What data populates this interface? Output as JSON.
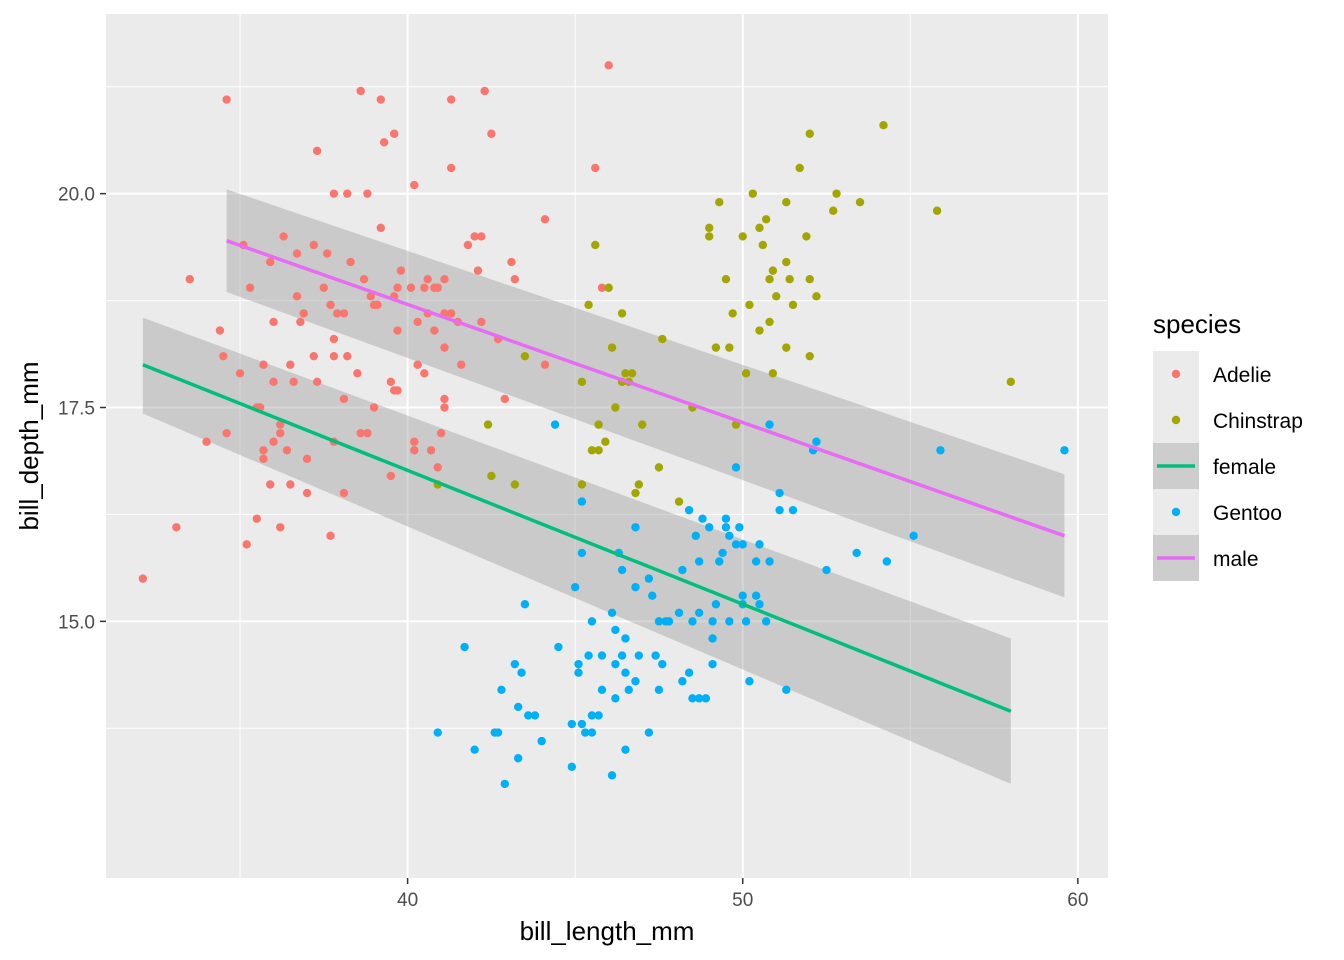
{
  "chart_data": {
    "type": "scatter",
    "xlabel": "bill_length_mm",
    "ylabel": "bill_depth_mm",
    "xlim": [
      31.0,
      60.9
    ],
    "ylim": [
      12.0,
      22.1
    ],
    "x_ticks": [
      40,
      50,
      60
    ],
    "y_ticks": [
      15.0,
      17.5,
      20.0
    ],
    "x_tick_labels": [
      "40",
      "50",
      "60"
    ],
    "y_tick_labels": [
      "15.0",
      "17.5",
      "20.0"
    ],
    "grid": true,
    "legend": {
      "title": "species",
      "position": "right",
      "entries": [
        {
          "label": "Adelie",
          "kind": "point",
          "color": "#F8766D"
        },
        {
          "label": "Chinstrap",
          "kind": "point",
          "color": "#A3A500"
        },
        {
          "label": "female",
          "kind": "line",
          "color": "#00BF7D"
        },
        {
          "label": "Gentoo",
          "kind": "point",
          "color": "#00B0F6"
        },
        {
          "label": "male",
          "kind": "line",
          "color": "#E76BF3"
        }
      ]
    },
    "series": [
      {
        "name": "Adelie",
        "kind": "scatter",
        "color": "#F8766D",
        "points": [
          [
            32.1,
            15.5
          ],
          [
            33.1,
            16.1
          ],
          [
            33.5,
            19.0
          ],
          [
            34.0,
            17.1
          ],
          [
            34.4,
            18.4
          ],
          [
            34.5,
            18.1
          ],
          [
            34.6,
            21.1
          ],
          [
            34.6,
            17.2
          ],
          [
            35.0,
            17.9
          ],
          [
            35.1,
            19.4
          ],
          [
            35.2,
            15.9
          ],
          [
            35.3,
            18.9
          ],
          [
            35.5,
            16.2
          ],
          [
            35.5,
            17.5
          ],
          [
            35.6,
            17.5
          ],
          [
            35.7,
            17.0
          ],
          [
            35.7,
            16.9
          ],
          [
            35.7,
            18.0
          ],
          [
            35.9,
            16.6
          ],
          [
            35.9,
            19.2
          ],
          [
            36.0,
            18.5
          ],
          [
            36.0,
            17.8
          ],
          [
            36.0,
            17.1
          ],
          [
            36.2,
            16.1
          ],
          [
            36.2,
            17.3
          ],
          [
            36.2,
            17.2
          ],
          [
            36.3,
            19.5
          ],
          [
            36.4,
            17.0
          ],
          [
            36.5,
            16.6
          ],
          [
            36.5,
            18.0
          ],
          [
            36.6,
            17.8
          ],
          [
            36.7,
            18.8
          ],
          [
            36.7,
            19.3
          ],
          [
            36.8,
            18.5
          ],
          [
            36.9,
            18.6
          ],
          [
            37.0,
            16.9
          ],
          [
            37.0,
            16.5
          ],
          [
            37.2,
            18.1
          ],
          [
            37.2,
            19.4
          ],
          [
            37.3,
            20.5
          ],
          [
            37.3,
            17.8
          ],
          [
            37.5,
            18.9
          ],
          [
            37.6,
            19.3
          ],
          [
            37.7,
            18.7
          ],
          [
            37.7,
            16.0
          ],
          [
            37.8,
            18.3
          ],
          [
            37.8,
            18.1
          ],
          [
            37.8,
            17.1
          ],
          [
            37.8,
            20.0
          ],
          [
            37.9,
            18.6
          ],
          [
            38.1,
            18.6
          ],
          [
            38.1,
            17.6
          ],
          [
            38.1,
            16.5
          ],
          [
            38.2,
            18.1
          ],
          [
            38.2,
            20.0
          ],
          [
            38.3,
            19.2
          ],
          [
            38.5,
            17.9
          ],
          [
            38.6,
            21.2
          ],
          [
            38.6,
            17.2
          ],
          [
            38.7,
            19.0
          ],
          [
            38.8,
            17.2
          ],
          [
            38.8,
            20.0
          ],
          [
            38.9,
            18.8
          ],
          [
            39.0,
            18.7
          ],
          [
            39.0,
            17.5
          ],
          [
            39.1,
            18.7
          ],
          [
            39.2,
            19.6
          ],
          [
            39.2,
            21.1
          ],
          [
            39.3,
            20.6
          ],
          [
            39.5,
            16.7
          ],
          [
            39.5,
            17.8
          ],
          [
            39.6,
            17.7
          ],
          [
            39.6,
            20.7
          ],
          [
            39.6,
            18.8
          ],
          [
            39.7,
            18.4
          ],
          [
            39.7,
            18.9
          ],
          [
            39.7,
            17.7
          ],
          [
            39.8,
            19.1
          ],
          [
            40.1,
            18.9
          ],
          [
            40.2,
            20.1
          ],
          [
            40.2,
            17.1
          ],
          [
            40.2,
            17.0
          ],
          [
            40.3,
            18.0
          ],
          [
            40.3,
            18.5
          ],
          [
            40.5,
            17.9
          ],
          [
            40.5,
            18.9
          ],
          [
            40.6,
            19.0
          ],
          [
            40.6,
            18.6
          ],
          [
            40.7,
            17.0
          ],
          [
            40.8,
            18.4
          ],
          [
            40.8,
            18.9
          ],
          [
            40.9,
            18.9
          ],
          [
            40.9,
            16.8
          ],
          [
            41.0,
            17.2
          ],
          [
            41.1,
            18.6
          ],
          [
            41.1,
            17.5
          ],
          [
            41.1,
            19.0
          ],
          [
            41.1,
            18.2
          ],
          [
            41.1,
            17.6
          ],
          [
            41.3,
            18.6
          ],
          [
            41.3,
            21.1
          ],
          [
            41.3,
            20.3
          ],
          [
            41.5,
            18.5
          ],
          [
            41.6,
            18.0
          ],
          [
            41.8,
            19.4
          ],
          [
            42.0,
            19.5
          ],
          [
            42.1,
            19.1
          ],
          [
            42.2,
            18.5
          ],
          [
            42.2,
            19.5
          ],
          [
            42.3,
            21.2
          ],
          [
            42.5,
            20.7
          ],
          [
            42.7,
            18.3
          ],
          [
            42.9,
            17.6
          ],
          [
            43.1,
            19.2
          ],
          [
            43.2,
            19.0
          ],
          [
            44.1,
            18.0
          ],
          [
            44.1,
            19.7
          ],
          [
            45.6,
            20.3
          ],
          [
            45.8,
            18.9
          ],
          [
            46.0,
            21.5
          ]
        ]
      },
      {
        "name": "Chinstrap",
        "kind": "scatter",
        "color": "#A3A500",
        "points": [
          [
            40.9,
            16.6
          ],
          [
            42.4,
            17.3
          ],
          [
            42.5,
            16.7
          ],
          [
            43.2,
            16.6
          ],
          [
            43.5,
            18.1
          ],
          [
            45.2,
            17.8
          ],
          [
            45.2,
            16.6
          ],
          [
            45.4,
            18.7
          ],
          [
            45.5,
            17.0
          ],
          [
            45.6,
            19.4
          ],
          [
            45.7,
            17.3
          ],
          [
            45.7,
            17.0
          ],
          [
            45.9,
            17.1
          ],
          [
            46.0,
            18.9
          ],
          [
            46.1,
            18.2
          ],
          [
            46.2,
            17.5
          ],
          [
            46.4,
            18.6
          ],
          [
            46.4,
            17.8
          ],
          [
            46.5,
            17.9
          ],
          [
            46.6,
            17.8
          ],
          [
            46.7,
            17.9
          ],
          [
            46.8,
            16.5
          ],
          [
            46.9,
            16.6
          ],
          [
            47.0,
            17.3
          ],
          [
            47.5,
            16.8
          ],
          [
            47.6,
            18.3
          ],
          [
            48.1,
            16.4
          ],
          [
            48.5,
            17.5
          ],
          [
            49.0,
            19.5
          ],
          [
            49.0,
            19.6
          ],
          [
            49.2,
            18.2
          ],
          [
            49.3,
            19.9
          ],
          [
            49.5,
            19.0
          ],
          [
            49.6,
            18.2
          ],
          [
            49.7,
            18.6
          ],
          [
            49.8,
            17.3
          ],
          [
            50.0,
            19.5
          ],
          [
            50.1,
            17.9
          ],
          [
            50.2,
            18.7
          ],
          [
            50.3,
            20.0
          ],
          [
            50.5,
            18.4
          ],
          [
            50.5,
            19.6
          ],
          [
            50.6,
            19.4
          ],
          [
            50.7,
            19.7
          ],
          [
            50.8,
            19.0
          ],
          [
            50.8,
            18.5
          ],
          [
            50.9,
            17.9
          ],
          [
            50.9,
            19.1
          ],
          [
            51.0,
            18.8
          ],
          [
            51.3,
            19.2
          ],
          [
            51.3,
            18.2
          ],
          [
            51.3,
            19.9
          ],
          [
            51.4,
            19.0
          ],
          [
            51.5,
            18.7
          ],
          [
            51.7,
            20.3
          ],
          [
            51.9,
            19.5
          ],
          [
            52.0,
            18.1
          ],
          [
            52.0,
            19.0
          ],
          [
            52.0,
            20.7
          ],
          [
            52.2,
            18.8
          ],
          [
            52.7,
            19.8
          ],
          [
            52.8,
            20.0
          ],
          [
            53.5,
            19.9
          ],
          [
            54.2,
            20.8
          ],
          [
            55.8,
            19.8
          ],
          [
            58.0,
            17.8
          ]
        ]
      },
      {
        "name": "Gentoo",
        "kind": "scatter",
        "color": "#00B0F6",
        "points": [
          [
            40.9,
            13.7
          ],
          [
            41.7,
            14.7
          ],
          [
            42.0,
            13.5
          ],
          [
            42.6,
            13.7
          ],
          [
            42.7,
            13.7
          ],
          [
            42.8,
            14.2
          ],
          [
            42.9,
            13.1
          ],
          [
            43.2,
            14.5
          ],
          [
            43.3,
            14.0
          ],
          [
            43.3,
            13.4
          ],
          [
            43.4,
            14.4
          ],
          [
            43.5,
            15.2
          ],
          [
            43.6,
            13.9
          ],
          [
            43.8,
            13.9
          ],
          [
            44.0,
            13.6
          ],
          [
            44.4,
            17.3
          ],
          [
            44.5,
            14.7
          ],
          [
            44.9,
            13.3
          ],
          [
            44.9,
            13.8
          ],
          [
            45.0,
            15.4
          ],
          [
            45.1,
            14.5
          ],
          [
            45.1,
            14.4
          ],
          [
            45.2,
            15.8
          ],
          [
            45.2,
            16.4
          ],
          [
            45.2,
            13.8
          ],
          [
            45.3,
            13.7
          ],
          [
            45.4,
            14.6
          ],
          [
            45.5,
            13.7
          ],
          [
            45.5,
            13.9
          ],
          [
            45.5,
            15.0
          ],
          [
            45.7,
            13.9
          ],
          [
            45.8,
            14.2
          ],
          [
            45.8,
            14.6
          ],
          [
            46.1,
            13.2
          ],
          [
            46.1,
            15.1
          ],
          [
            46.2,
            14.1
          ],
          [
            46.2,
            14.5
          ],
          [
            46.2,
            14.9
          ],
          [
            46.3,
            15.8
          ],
          [
            46.4,
            14.6
          ],
          [
            46.4,
            15.6
          ],
          [
            46.5,
            14.4
          ],
          [
            46.5,
            13.5
          ],
          [
            46.5,
            14.8
          ],
          [
            46.6,
            14.2
          ],
          [
            46.8,
            14.3
          ],
          [
            46.8,
            15.4
          ],
          [
            46.8,
            16.1
          ],
          [
            46.9,
            14.6
          ],
          [
            47.2,
            13.7
          ],
          [
            47.2,
            15.5
          ],
          [
            47.3,
            15.3
          ],
          [
            47.4,
            14.6
          ],
          [
            47.5,
            14.2
          ],
          [
            47.5,
            15.0
          ],
          [
            47.6,
            14.5
          ],
          [
            47.7,
            15.0
          ],
          [
            47.8,
            15.0
          ],
          [
            48.1,
            15.1
          ],
          [
            48.2,
            14.3
          ],
          [
            48.2,
            15.6
          ],
          [
            48.4,
            14.4
          ],
          [
            48.4,
            16.3
          ],
          [
            48.5,
            14.1
          ],
          [
            48.5,
            15.0
          ],
          [
            48.6,
            16.0
          ],
          [
            48.7,
            14.1
          ],
          [
            48.7,
            15.7
          ],
          [
            48.7,
            15.1
          ],
          [
            48.8,
            16.2
          ],
          [
            48.9,
            14.1
          ],
          [
            49.0,
            16.1
          ],
          [
            49.1,
            14.5
          ],
          [
            49.1,
            15.0
          ],
          [
            49.1,
            14.8
          ],
          [
            49.2,
            15.2
          ],
          [
            49.3,
            15.7
          ],
          [
            49.4,
            15.8
          ],
          [
            49.5,
            16.2
          ],
          [
            49.5,
            16.1
          ],
          [
            49.6,
            15.0
          ],
          [
            49.6,
            16.0
          ],
          [
            49.8,
            15.9
          ],
          [
            49.8,
            16.8
          ],
          [
            49.9,
            16.1
          ],
          [
            50.0,
            15.2
          ],
          [
            50.0,
            15.3
          ],
          [
            50.0,
            15.9
          ],
          [
            50.1,
            15.0
          ],
          [
            50.2,
            14.3
          ],
          [
            50.4,
            15.3
          ],
          [
            50.4,
            15.7
          ],
          [
            50.5,
            15.9
          ],
          [
            50.5,
            15.2
          ],
          [
            50.7,
            15.0
          ],
          [
            50.8,
            15.7
          ],
          [
            50.8,
            17.3
          ],
          [
            51.1,
            16.5
          ],
          [
            51.1,
            16.3
          ],
          [
            51.3,
            14.2
          ],
          [
            51.5,
            16.3
          ],
          [
            52.1,
            17.0
          ],
          [
            52.2,
            17.1
          ],
          [
            52.5,
            15.6
          ],
          [
            53.4,
            15.8
          ],
          [
            54.3,
            15.7
          ],
          [
            55.1,
            16.0
          ],
          [
            55.9,
            17.0
          ],
          [
            59.6,
            17.0
          ]
        ]
      },
      {
        "name": "female",
        "kind": "smooth",
        "color": "#00BF7D",
        "x": [
          32.1,
          58.0
        ],
        "y": [
          18.0,
          13.95
        ],
        "ci_lower": [
          17.43,
          13.1
        ],
        "ci_upper": [
          18.55,
          14.8
        ]
      },
      {
        "name": "male",
        "kind": "smooth",
        "color": "#E76BF3",
        "x": [
          34.6,
          59.6
        ],
        "y": [
          19.45,
          16.0
        ],
        "ci_lower": [
          18.85,
          15.28
        ],
        "ci_upper": [
          20.05,
          16.72
        ]
      }
    ]
  }
}
